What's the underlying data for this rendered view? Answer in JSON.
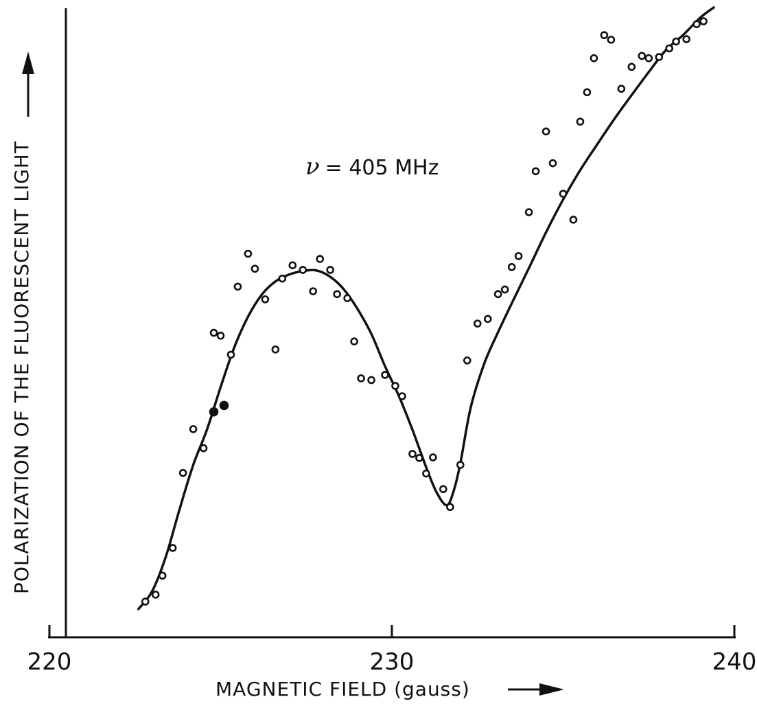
{
  "chart_data": {
    "type": "scatter",
    "xlabel": "MAGNETIC FIELD (gauss)",
    "ylabel": "POLARIZATION OF THE FLUORESCENT LIGHT",
    "annotation": {
      "symbol": "ν",
      "text": "= 405 MHz"
    },
    "xlim": [
      220,
      240
    ],
    "xticks": [
      220,
      230,
      240
    ],
    "xtick_labels": [
      "220",
      "230",
      "240"
    ],
    "ylim": [
      0,
      100
    ],
    "y_ticks_shown": false,
    "grid": false,
    "series": [
      {
        "marker": "open-circle",
        "x": [
          222.8,
          223.1,
          223.3,
          223.6,
          223.9,
          224.2,
          224.5,
          224.8,
          225.0,
          225.3,
          225.5,
          225.8,
          226.0,
          226.3,
          226.6,
          226.8,
          227.1,
          227.4,
          227.7,
          227.9,
          228.2,
          228.4,
          228.7,
          228.9,
          229.1,
          229.4,
          229.8,
          230.1,
          230.3,
          230.6,
          230.8,
          231.0,
          231.2,
          231.5,
          231.7,
          232.0,
          232.2,
          232.5,
          232.8,
          233.1,
          233.3,
          233.5,
          233.7,
          234.0,
          234.2,
          234.5,
          234.7,
          235.0,
          235.3,
          235.5,
          235.7,
          235.9,
          236.2,
          236.4,
          236.7,
          237.0,
          237.3,
          237.5,
          237.8,
          238.1,
          238.3,
          238.6,
          238.9,
          239.1
        ],
        "y": [
          1.9,
          3.1,
          6.4,
          11.2,
          24.2,
          31.8,
          28.5,
          48.5,
          48.0,
          44.7,
          56.5,
          62.2,
          59.6,
          54.3,
          45.6,
          57.9,
          60.2,
          59.4,
          55.7,
          61.3,
          59.4,
          55.2,
          54.5,
          47.0,
          40.6,
          40.3,
          41.2,
          39.3,
          37.5,
          27.5,
          26.8,
          24.1,
          26.9,
          21.4,
          18.3,
          25.6,
          43.7,
          50.1,
          50.9,
          55.2,
          56.0,
          59.9,
          61.8,
          69.4,
          76.5,
          83.4,
          77.9,
          72.6,
          68.1,
          85.1,
          90.2,
          96.1,
          100.1,
          99.3,
          90.8,
          94.6,
          96.5,
          96.1,
          96.3,
          97.8,
          99.0,
          99.4,
          102.0,
          102.5
        ]
      },
      {
        "marker": "filled-circle",
        "x": [
          224.8,
          225.1
        ],
        "y": [
          34.8,
          35.9
        ]
      }
    ],
    "fit_curve": {
      "style": "solid",
      "x": [
        222.6,
        223.0,
        223.4,
        223.8,
        224.2,
        224.6,
        225.0,
        225.4,
        225.8,
        226.2,
        226.6,
        227.0,
        227.4,
        227.8,
        228.2,
        228.6,
        229.0,
        229.4,
        229.8,
        230.2,
        230.6,
        231.0,
        231.3,
        231.6,
        231.8,
        232.0,
        232.3,
        232.7,
        233.1,
        233.5,
        234.0,
        234.5,
        235.0,
        235.5,
        236.0,
        236.5,
        237.0,
        237.5,
        238.0,
        238.5,
        239.0,
        239.4
      ],
      "y": [
        0.6,
        3.7,
        9.7,
        17.9,
        25.6,
        31.7,
        39.1,
        46.0,
        51.3,
        55.1,
        57.4,
        58.6,
        59.2,
        59.3,
        58.2,
        56.0,
        52.6,
        48.3,
        42.7,
        37.6,
        31.7,
        25.2,
        20.9,
        18.6,
        21.0,
        25.9,
        35.5,
        43.2,
        48.6,
        53.6,
        59.7,
        65.9,
        71.6,
        76.7,
        81.2,
        85.6,
        89.7,
        93.7,
        97.5,
        100.1,
        103.1,
        104.9
      ]
    }
  }
}
